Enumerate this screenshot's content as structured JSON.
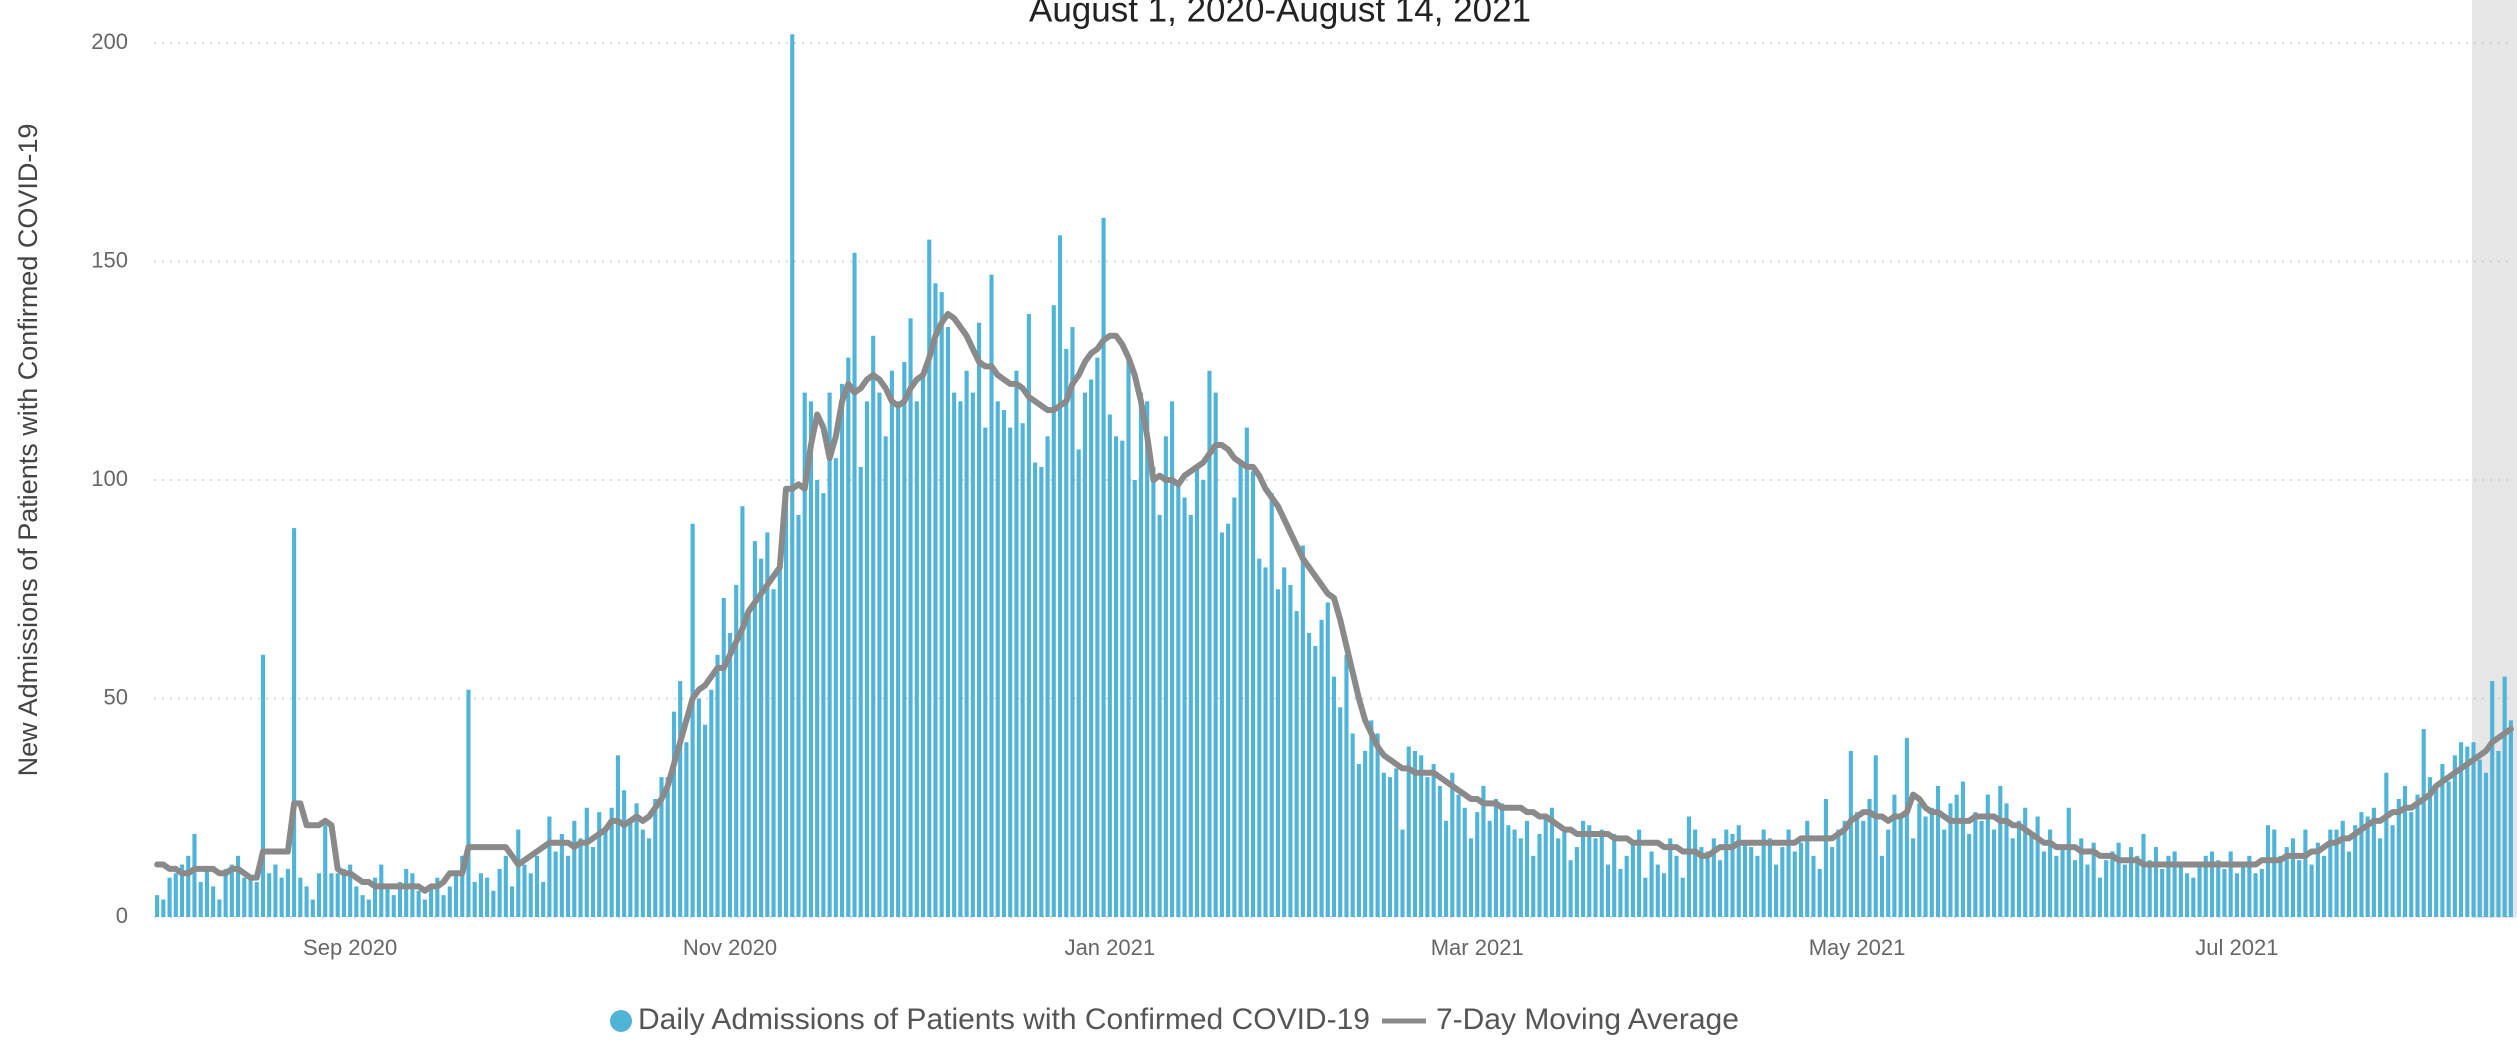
{
  "chart_data": {
    "type": "bar",
    "title": "August 1, 2020-August 14, 2021",
    "y_label": "New Admissions of Patients with Confirmed COVID-19",
    "ylim": [
      0,
      200
    ],
    "yticks": [
      0,
      50,
      100,
      150,
      200
    ],
    "grid": true,
    "legend": "bottom",
    "categories": [
      null,
      null,
      null,
      null,
      null,
      null,
      null,
      null,
      null,
      null,
      null,
      null,
      null,
      null,
      null,
      null,
      null,
      null,
      null,
      null,
      null,
      null,
      null,
      null,
      null,
      null,
      null,
      null,
      null,
      null,
      null,
      "Sep 2020",
      null,
      null,
      null,
      null,
      null,
      null,
      null,
      null,
      null,
      null,
      null,
      null,
      null,
      null,
      null,
      null,
      null,
      null,
      null,
      null,
      null,
      null,
      null,
      null,
      null,
      null,
      null,
      null,
      null,
      null,
      null,
      null,
      null,
      null,
      null,
      null,
      null,
      null,
      null,
      null,
      null,
      null,
      null,
      null,
      null,
      null,
      null,
      null,
      null,
      null,
      null,
      null,
      null,
      null,
      null,
      null,
      null,
      null,
      null,
      null,
      "Nov 2020",
      null,
      null,
      null,
      null,
      null,
      null,
      null,
      null,
      null,
      null,
      null,
      null,
      null,
      null,
      null,
      null,
      null,
      null,
      null,
      null,
      null,
      null,
      null,
      null,
      null,
      null,
      null,
      null,
      null,
      null,
      null,
      null,
      null,
      null,
      null,
      null,
      null,
      null,
      null,
      null,
      null,
      null,
      null,
      null,
      null,
      null,
      null,
      null,
      null,
      null,
      null,
      null,
      null,
      null,
      null,
      null,
      null,
      null,
      null,
      null,
      "Jan 2021",
      null,
      null,
      null,
      null,
      null,
      null,
      null,
      null,
      null,
      null,
      null,
      null,
      null,
      null,
      null,
      null,
      null,
      null,
      null,
      null,
      null,
      null,
      null,
      null,
      null,
      null,
      null,
      null,
      null,
      null,
      null,
      null,
      null,
      null,
      null,
      null,
      null,
      null,
      null,
      null,
      null,
      null,
      null,
      null,
      null,
      null,
      null,
      null,
      null,
      null,
      null,
      null,
      null,
      null,
      null,
      null,
      null,
      null,
      "Mar 2021",
      null,
      null,
      null,
      null,
      null,
      null,
      null,
      null,
      null,
      null,
      null,
      null,
      null,
      null,
      null,
      null,
      null,
      null,
      null,
      null,
      null,
      null,
      null,
      null,
      null,
      null,
      null,
      null,
      null,
      null,
      null,
      null,
      null,
      null,
      null,
      null,
      null,
      null,
      null,
      null,
      null,
      null,
      null,
      null,
      null,
      null,
      null,
      null,
      null,
      null,
      null,
      null,
      null,
      null,
      null,
      null,
      null,
      null,
      null,
      null,
      "May 2021",
      null,
      null,
      null,
      null,
      null,
      null,
      null,
      null,
      null,
      null,
      null,
      null,
      null,
      null,
      null,
      null,
      null,
      null,
      null,
      null,
      null,
      null,
      null,
      null,
      null,
      null,
      null,
      null,
      null,
      null,
      null,
      null,
      null,
      null,
      null,
      null,
      null,
      null,
      null,
      null,
      null,
      null,
      null,
      null,
      null,
      null,
      null,
      null,
      null,
      null,
      null,
      null,
      null,
      null,
      null,
      null,
      null,
      null,
      null,
      null,
      "Jul 2021",
      null,
      null,
      null,
      null,
      null,
      null,
      null,
      null,
      null,
      null,
      null,
      null,
      null,
      null,
      null,
      null,
      null,
      null,
      null,
      null,
      null,
      null,
      null,
      null,
      null,
      null,
      null,
      null,
      null,
      null,
      null,
      null,
      null,
      null,
      null,
      null,
      null,
      null,
      null,
      null,
      null,
      null,
      null,
      null
    ],
    "series": [
      {
        "name": "Daily Admissions of Patients with Confirmed COVID-19",
        "type": "bar",
        "color": "#4fb4d8",
        "values": [
          5,
          4,
          9,
          10,
          12,
          14,
          19,
          8,
          11,
          7,
          4,
          11,
          12,
          14,
          9,
          9,
          8,
          60,
          10,
          12,
          9,
          11,
          89,
          9,
          7,
          4,
          10,
          21,
          10,
          10,
          11,
          12,
          7,
          5,
          4,
          9,
          12,
          7,
          5,
          8,
          11,
          10,
          6,
          4,
          7,
          9,
          5,
          7,
          10,
          14,
          52,
          8,
          10,
          9,
          6,
          11,
          14,
          7,
          20,
          12,
          10,
          14,
          8,
          23,
          15,
          19,
          14,
          22,
          18,
          25,
          16,
          24,
          20,
          25,
          37,
          29,
          22,
          26,
          20,
          18,
          27,
          32,
          32,
          47,
          54,
          40,
          90,
          50,
          44,
          52,
          60,
          73,
          65,
          76,
          94,
          70,
          86,
          82,
          88,
          75,
          80,
          98,
          202,
          92,
          120,
          118,
          100,
          97,
          120,
          105,
          122,
          128,
          152,
          103,
          118,
          133,
          120,
          110,
          125,
          118,
          127,
          137,
          118,
          124,
          155,
          145,
          143,
          135,
          120,
          118,
          125,
          120,
          136,
          112,
          147,
          118,
          116,
          112,
          125,
          113,
          138,
          104,
          103,
          110,
          140,
          156,
          130,
          135,
          107,
          120,
          123,
          128,
          160,
          115,
          110,
          109,
          128,
          100,
          120,
          118,
          103,
          92,
          110,
          118,
          99,
          96,
          92,
          103,
          100,
          125,
          120,
          88,
          90,
          96,
          104,
          112,
          102,
          82,
          80,
          97,
          75,
          80,
          76,
          70,
          85,
          65,
          62,
          68,
          72,
          55,
          48,
          60,
          42,
          35,
          38,
          45,
          42,
          33,
          32,
          34,
          20,
          39,
          38,
          37,
          32,
          35,
          30,
          22,
          33,
          28,
          25,
          18,
          24,
          30,
          22,
          27,
          26,
          21,
          20,
          18,
          22,
          14,
          19,
          23,
          25,
          18,
          20,
          13,
          16,
          22,
          21,
          18,
          20,
          12,
          19,
          11,
          14,
          17,
          20,
          9,
          15,
          12,
          10,
          18,
          14,
          9,
          23,
          20,
          16,
          15,
          18,
          13,
          20,
          19,
          21,
          17,
          16,
          14,
          20,
          18,
          12,
          16,
          20,
          15,
          17,
          22,
          14,
          11,
          27,
          16,
          20,
          22,
          38,
          24,
          22,
          27,
          37,
          14,
          20,
          28,
          23,
          41,
          18,
          26,
          23,
          25,
          30,
          20,
          26,
          28,
          31,
          19,
          24,
          22,
          28,
          20,
          30,
          26,
          18,
          22,
          25,
          19,
          23,
          15,
          20,
          14,
          16,
          25,
          13,
          18,
          12,
          17,
          9,
          13,
          15,
          17,
          12,
          16,
          14,
          19,
          13,
          16,
          11,
          14,
          15,
          12,
          10,
          9,
          12,
          14,
          15,
          13,
          11,
          15,
          10,
          12,
          14,
          10,
          11,
          21,
          20,
          14,
          16,
          18,
          13,
          20,
          12,
          17,
          14,
          20,
          20,
          22,
          15,
          21,
          24,
          23,
          25,
          18,
          33,
          21,
          27,
          30,
          24,
          28,
          43,
          32,
          30,
          35,
          31,
          37,
          40,
          39,
          40,
          36,
          33,
          54,
          38,
          55,
          45
        ]
      },
      {
        "name": "7-Day Moving Average",
        "type": "line",
        "color": "#8a8a8a",
        "values": [
          12,
          12,
          11,
          11,
          10,
          10,
          11,
          11,
          11,
          11,
          10,
          10,
          11,
          11,
          10,
          9,
          9,
          15,
          15,
          15,
          15,
          15,
          26,
          26,
          21,
          21,
          21,
          22,
          21,
          11,
          10,
          10,
          9,
          8,
          8,
          7,
          7,
          7,
          7,
          7,
          7,
          7,
          7,
          6,
          7,
          7,
          8,
          10,
          10,
          10,
          16,
          16,
          16,
          16,
          16,
          16,
          16,
          14,
          12,
          13,
          14,
          15,
          16,
          17,
          17,
          17,
          17,
          16,
          17,
          17,
          18,
          19,
          20,
          22,
          22,
          21,
          22,
          23,
          22,
          23,
          25,
          27,
          30,
          35,
          40,
          45,
          50,
          52,
          53,
          55,
          57,
          57,
          60,
          63,
          66,
          70,
          72,
          74,
          76,
          78,
          80,
          98,
          98,
          99,
          98,
          108,
          115,
          112,
          105,
          110,
          118,
          122,
          120,
          121,
          123,
          124,
          123,
          121,
          118,
          117,
          118,
          121,
          123,
          124,
          128,
          133,
          136,
          138,
          137,
          135,
          133,
          130,
          127,
          126,
          126,
          124,
          123,
          122,
          122,
          121,
          119,
          118,
          117,
          116,
          116,
          117,
          118,
          122,
          124,
          127,
          129,
          130,
          132,
          133,
          133,
          131,
          128,
          124,
          118,
          110,
          100,
          101,
          100,
          100,
          99,
          101,
          102,
          103,
          104,
          106,
          108,
          108,
          107,
          105,
          104,
          103,
          103,
          101,
          98,
          96,
          94,
          91,
          88,
          85,
          82,
          80,
          78,
          76,
          74,
          73,
          68,
          62,
          56,
          50,
          45,
          42,
          39,
          37,
          36,
          35,
          34,
          34,
          33,
          33,
          33,
          33,
          32,
          31,
          30,
          29,
          28,
          27,
          27,
          26,
          26,
          26,
          25,
          25,
          25,
          25,
          24,
          24,
          23,
          23,
          22,
          21,
          20,
          20,
          19,
          19,
          19,
          19,
          19,
          19,
          18,
          18,
          18,
          17,
          17,
          17,
          17,
          17,
          16,
          16,
          16,
          15,
          15,
          15,
          14,
          14,
          15,
          16,
          16,
          16,
          17,
          17,
          17,
          17,
          17,
          17,
          17,
          17,
          17,
          17,
          18,
          18,
          18,
          18,
          18,
          18,
          19,
          20,
          22,
          23,
          24,
          24,
          23,
          23,
          22,
          23,
          23,
          24,
          28,
          27,
          25,
          24,
          24,
          23,
          22,
          22,
          22,
          22,
          23,
          23,
          23,
          23,
          22,
          22,
          21,
          21,
          20,
          19,
          18,
          17,
          17,
          16,
          16,
          16,
          16,
          15,
          15,
          15,
          14,
          14,
          14,
          13,
          13,
          13,
          13,
          12,
          12,
          12,
          12,
          12,
          12,
          12,
          12,
          12,
          12,
          12,
          12,
          12,
          12,
          12,
          12,
          12,
          12,
          12,
          13,
          13,
          13,
          13,
          14,
          14,
          14,
          14,
          15,
          15,
          16,
          17,
          17,
          18,
          18,
          19,
          20,
          21,
          22,
          22,
          23,
          24,
          24,
          25,
          25,
          26,
          27,
          28,
          30,
          31,
          32,
          33,
          34,
          35,
          36,
          37,
          38,
          40,
          41,
          42,
          43
        ]
      }
    ]
  }
}
